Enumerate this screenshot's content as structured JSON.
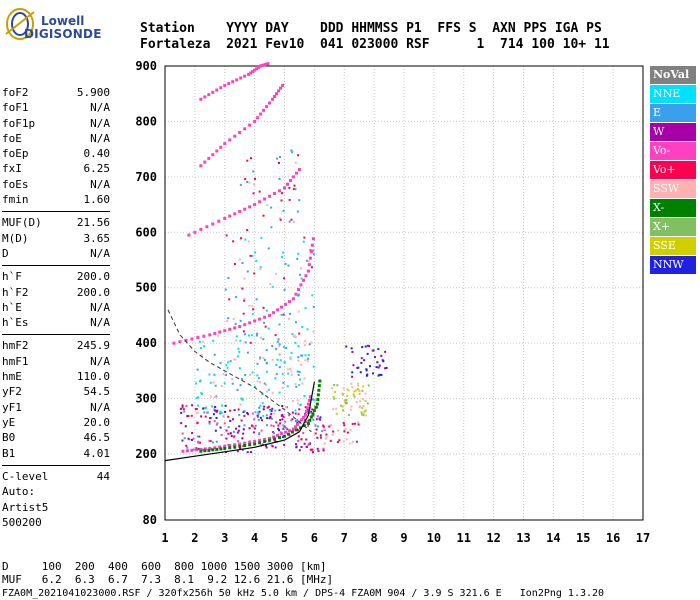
{
  "logo": {
    "line1": "Lowell",
    "line2": "DIGISONDE",
    "icon": "digisonde-logo-icon"
  },
  "header": {
    "labels_line": "Station    YYYY DAY    DDD HHMMSS P1  FFS S  AXN PPS IGA PS",
    "values_line": "Fortaleza  2021 Fev10  041 023000 RSF      1  714 100 10+ 11"
  },
  "params_group1": [
    {
      "label": "foF2",
      "value": "5.900"
    },
    {
      "label": "foF1",
      "value": "N/A"
    },
    {
      "label": "foF1p",
      "value": "N/A"
    },
    {
      "label": "foE",
      "value": "N/A"
    },
    {
      "label": "foEp",
      "value": "0.40"
    },
    {
      "label": "fxI",
      "value": "6.25"
    },
    {
      "label": "foEs",
      "value": "N/A"
    },
    {
      "label": "fmin",
      "value": "1.60"
    }
  ],
  "params_group2": [
    {
      "label": "MUF(D)",
      "value": "21.56"
    },
    {
      "label": "M(D)",
      "value": "3.65"
    },
    {
      "label": "D",
      "value": "N/A"
    }
  ],
  "params_group3": [
    {
      "label": "h`F",
      "value": "200.0"
    },
    {
      "label": "h`F2",
      "value": "200.0"
    },
    {
      "label": "h`E",
      "value": "N/A"
    },
    {
      "label": "h`Es",
      "value": "N/A"
    }
  ],
  "params_group4": [
    {
      "label": "hmF2",
      "value": "245.9"
    },
    {
      "label": "hmF1",
      "value": "N/A"
    },
    {
      "label": "hmE",
      "value": "110.0"
    },
    {
      "label": "yF2",
      "value": "54.5"
    },
    {
      "label": "yF1",
      "value": "N/A"
    },
    {
      "label": "yE",
      "value": "20.0"
    },
    {
      "label": "B0",
      "value": "46.5"
    },
    {
      "label": "B1",
      "value": "4.01"
    }
  ],
  "params_group5": [
    {
      "label": "C-level",
      "value": "44"
    }
  ],
  "auto": {
    "line1": "Auto:",
    "line2": "Artist5",
    "line3": "500200"
  },
  "legend": [
    {
      "label": "NoVal",
      "color": "#808080",
      "text_color": "#ffffff"
    },
    {
      "label": "NNE",
      "color": "#00e0ff",
      "text_color": "#ffffff"
    },
    {
      "label": "E",
      "color": "#3aa0ee",
      "text_color": "#ffffff"
    },
    {
      "label": "W",
      "color": "#a800a8",
      "text_color": "#ffffff"
    },
    {
      "label": "Vo-",
      "color": "#ff40c0",
      "text_color": "#ffffff"
    },
    {
      "label": "Vo+",
      "color": "#ff0050",
      "text_color": "#ffffff"
    },
    {
      "label": "SSW",
      "color": "#ffb0b0",
      "text_color": "#ffffff"
    },
    {
      "label": "X-",
      "color": "#008000",
      "text_color": "#ffffff"
    },
    {
      "label": "X+",
      "color": "#80c060",
      "text_color": "#ffffff"
    },
    {
      "label": "SSE",
      "color": "#d0d000",
      "text_color": "#ffffff"
    },
    {
      "label": "NNW",
      "color": "#2020e0",
      "text_color": "#ffffff"
    }
  ],
  "bottom": {
    "d_line": "D     100  200  400  600  800 1000 1500 3000 [km]",
    "muf_line": "MUF   6.2  6.3  6.7  7.3  8.1  9.2 12.6 21.6 [MHz]",
    "footer": "FZA0M_2021041023000.RSF / 320fx256h 50 kHz 5.0 km / DPS-4 FZA0M 904 / 3.9 S 321.6 E   Ion2Png 1.3.20"
  },
  "chart_data": {
    "type": "scatter",
    "x_ticks": [
      "1",
      "2",
      "3",
      "4",
      "5",
      "6",
      "7",
      "8",
      "9",
      "10",
      "11",
      "12",
      "13",
      "14",
      "15",
      "16",
      "17"
    ],
    "y_ticks": [
      "80",
      "200",
      "300",
      "400",
      "500",
      "600",
      "700",
      "800",
      "900"
    ],
    "x_range": [
      1,
      17
    ],
    "y_range": [
      80,
      900
    ],
    "grid": true,
    "traces": [
      {
        "name": "O-trace",
        "color": "#ff40c0",
        "x": [
          1.6,
          2.5,
          3.5,
          4.5,
          5.3,
          5.7,
          5.9
        ],
        "y": [
          205,
          210,
          218,
          228,
          245,
          270,
          310
        ]
      },
      {
        "name": "X-trace",
        "color": "#008000",
        "x": [
          2.2,
          3.0,
          4.0,
          5.0,
          5.8,
          6.1,
          6.2
        ],
        "y": [
          205,
          210,
          218,
          232,
          255,
          290,
          340
        ]
      },
      {
        "name": "2nd-hop",
        "color": "#ff40c0",
        "x": [
          1.3,
          2.5,
          3.5,
          4.5,
          5.3,
          5.8,
          6.0
        ],
        "y": [
          400,
          415,
          430,
          450,
          480,
          530,
          600
        ]
      },
      {
        "name": "3rd-hop",
        "color": "#ff40c0",
        "x": [
          1.8,
          3.0,
          4.0,
          5.0,
          5.6
        ],
        "y": [
          595,
          625,
          650,
          680,
          720
        ]
      },
      {
        "name": "4th-hop",
        "color": "#ff40c0",
        "x": [
          2.2,
          3.0,
          4.0,
          4.6,
          5.0
        ],
        "y": [
          720,
          760,
          800,
          840,
          870
        ]
      },
      {
        "name": "5th-hop",
        "color": "#ff40c0",
        "x": [
          2.2,
          3.0,
          3.8,
          4.2,
          4.5
        ],
        "y": [
          840,
          865,
          885,
          900,
          905
        ]
      }
    ],
    "profile_curve": {
      "x": [
        1.0,
        2.0,
        3.0,
        4.0,
        5.0,
        5.5,
        5.8,
        6.0
      ],
      "y": [
        188,
        196,
        204,
        212,
        225,
        240,
        270,
        330
      ]
    },
    "dashed_curve": {
      "x": [
        1.1,
        1.5,
        2.0,
        2.5,
        3.0,
        3.5,
        4.0,
        4.5,
        5.0,
        5.5,
        5.9
      ],
      "y": [
        460,
        415,
        385,
        365,
        350,
        335,
        320,
        300,
        280,
        258,
        240
      ]
    }
  }
}
